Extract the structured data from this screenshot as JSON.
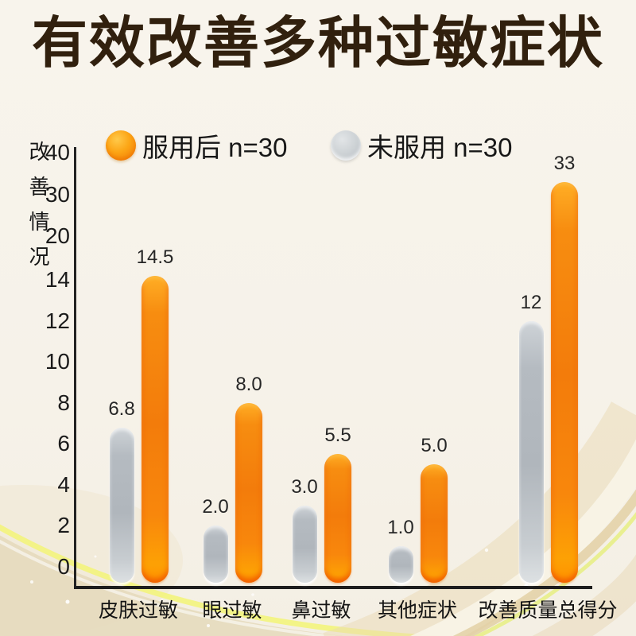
{
  "title": "有效改善多种过敏症状",
  "legend": [
    {
      "label": "服用后 n=30",
      "swatch": "orange",
      "color": "#f68c0c"
    },
    {
      "label": "未服用 n=30",
      "swatch": "gray",
      "color": "#bcc2c7"
    }
  ],
  "colors": {
    "background": "#f7f3ea",
    "title_text": "#31200e",
    "axis": "#1d1d1d",
    "orange_bar_top": "#ffae25",
    "orange_bar_mid": "#f37c0b",
    "orange_bar_rim": "#ee5200",
    "gray_bar_top": "#ced3d7",
    "gray_bar_mid": "#b0b6bc",
    "swirl_yellow": "#eff083",
    "swirl_gold": "#e7d8b4"
  },
  "chart_data": {
    "type": "bar",
    "title": "有效改善多种过敏症状",
    "ylabel": "改善情况",
    "xlabel": "",
    "categories": [
      "皮肤过敏",
      "眼过敏",
      "鼻过敏",
      "其他症状",
      "改善质量总得分"
    ],
    "series": [
      {
        "name": "服用后 n=30",
        "color_key": "orange",
        "values": [
          14.5,
          8.0,
          5.5,
          5.0,
          33
        ],
        "display": [
          "14.5",
          "8.0",
          "5.5",
          "5.0",
          "33"
        ]
      },
      {
        "name": "未服用 n=30",
        "color_key": "gray",
        "values": [
          6.8,
          2.0,
          3.0,
          1.0,
          12
        ],
        "display": [
          "6.8",
          "2.0",
          "3.0",
          "1.0",
          "12"
        ]
      }
    ],
    "y_ticks": [
      "40",
      "30",
      "20",
      "14",
      "12",
      "10",
      "8",
      "6",
      "4",
      "2",
      "0"
    ],
    "ylim": [
      0,
      40
    ],
    "axis_note": "non-linear compressed scale above 14 (scale break: 14→20→30→40)",
    "grid": false,
    "legend_position": "top"
  }
}
